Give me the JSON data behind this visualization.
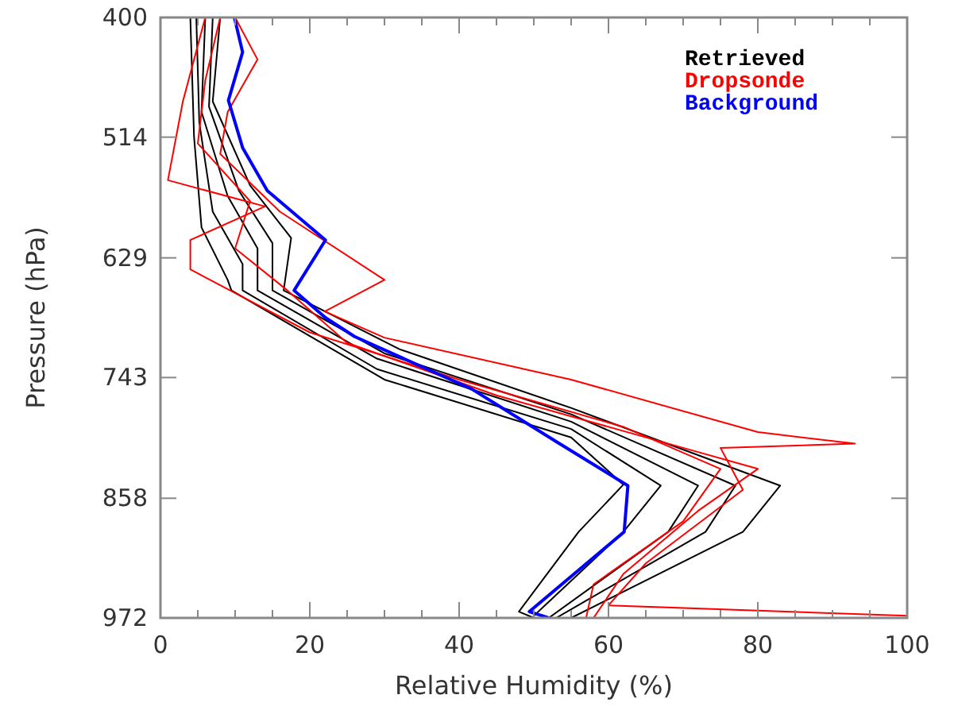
{
  "chart_data": {
    "type": "line",
    "xlabel": "Relative Humidity (%)",
    "ylabel": "Pressure (hPa)",
    "xlim": [
      0,
      100
    ],
    "ylim": [
      972,
      400
    ],
    "xticks": [
      0,
      {
        "value": 5,
        "label": null
      },
      {
        "value": 10,
        "label": null
      },
      {
        "value": 15,
        "label": null
      },
      20,
      {
        "value": 25,
        "label": null
      },
      {
        "value": 30,
        "label": null
      },
      {
        "value": 35,
        "label": null
      },
      40,
      {
        "value": 45,
        "label": null
      },
      {
        "value": 50,
        "label": null
      },
      {
        "value": 55,
        "label": null
      },
      60,
      {
        "value": 65,
        "label": null
      },
      {
        "value": 70,
        "label": null
      },
      {
        "value": 75,
        "label": null
      },
      80,
      {
        "value": 85,
        "label": null
      },
      {
        "value": 90,
        "label": null
      },
      {
        "value": 95,
        "label": null
      },
      100
    ],
    "yticks": [
      400,
      514,
      629,
      743,
      858,
      972
    ],
    "grid": false,
    "legend": "top right",
    "line_style": "solid",
    "marker": "none",
    "series": [
      {
        "name": "Retrieved",
        "color": "#000000",
        "x": [
          6,
          5.5,
          9,
          13,
          13,
          29,
          55,
          72,
          68,
          52
        ],
        "values": [
          400,
          490,
          570,
          620,
          660,
          725,
          785,
          846,
          890,
          972
        ]
      },
      {
        "color": "#000000",
        "x": [
          4,
          4.5,
          5.5,
          9,
          9.5,
          30,
          55,
          62,
          56,
          48,
          50
        ],
        "values": [
          400,
          514,
          600,
          650,
          660,
          745,
          800,
          845,
          890,
          966,
          972
        ]
      },
      {
        "color": "#000000",
        "x": [
          4.8,
          5.2,
          7,
          11,
          11,
          29,
          55,
          67,
          62,
          50
        ],
        "values": [
          400,
          500,
          585,
          635,
          660,
          735,
          792,
          846,
          890,
          970
        ]
      },
      {
        "color": "#000000",
        "x": [
          7,
          6.5,
          10.5,
          15,
          15,
          30,
          55,
          77,
          73,
          53
        ],
        "values": [
          400,
          485,
          565,
          615,
          660,
          720,
          778,
          846,
          890,
          972
        ]
      },
      {
        "color": "#000000",
        "x": [
          8,
          7,
          12,
          17.5,
          16.5,
          32,
          55,
          83,
          78,
          55
        ],
        "values": [
          400,
          480,
          560,
          610,
          660,
          716,
          772,
          846,
          890,
          972
        ]
      },
      {
        "name": "Dropsonde",
        "color": "#ff0000",
        "x": [
          8,
          6,
          5,
          12,
          10,
          17,
          25,
          45,
          70,
          80,
          72,
          62,
          58
        ],
        "values": [
          400,
          460,
          520,
          575,
          620,
          660,
          710,
          760,
          810,
          830,
          870,
          930,
          972
        ]
      },
      {
        "color": "#ff0000",
        "x": [
          6,
          3,
          1,
          14,
          4,
          4,
          12,
          20,
          40,
          62,
          75,
          70,
          58,
          57
        ],
        "values": [
          400,
          480,
          555,
          580,
          612,
          640,
          670,
          700,
          745,
          790,
          830,
          880,
          940,
          972
        ]
      },
      {
        "color": "#ff0000",
        "x": [
          10,
          13,
          9,
          8,
          16,
          30,
          22,
          30,
          55,
          80,
          93,
          75,
          78,
          65,
          60,
          100
        ],
        "values": [
          400,
          440,
          490,
          530,
          585,
          650,
          680,
          705,
          745,
          795,
          806,
          810,
          850,
          920,
          960,
          970
        ]
      },
      {
        "name": "Background",
        "color": "#0000ff",
        "x": [
          9.9,
          11,
          9.1,
          11,
          14.3,
          22.1,
          17.9,
          22.1,
          26,
          41.7,
          53,
          62.6,
          62.1,
          49.4,
          52
        ],
        "values": [
          400,
          433,
          479,
          524,
          565,
          612,
          660,
          686,
          704,
          754,
          804,
          846,
          890,
          966,
          972
        ]
      }
    ]
  }
}
